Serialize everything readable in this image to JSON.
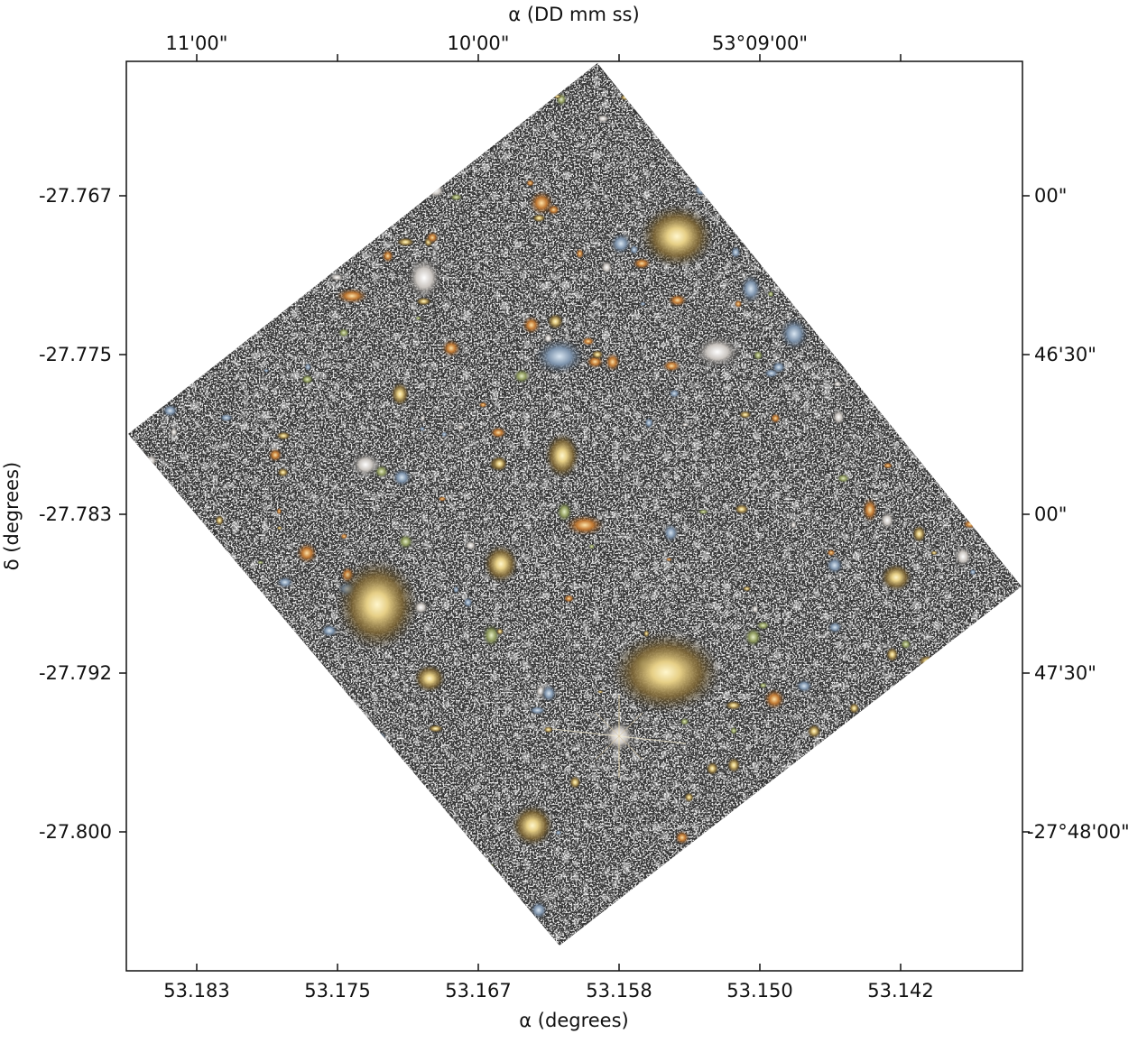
{
  "figure": {
    "top_axis_title": "α (DD mm ss)",
    "bottom_axis_title": "α (degrees)",
    "left_axis_title": "δ (degrees)",
    "bottom_ticks": [
      "53.183",
      "53.175",
      "53.167",
      "53.158",
      "53.150",
      "53.142"
    ],
    "top_ticks": [
      "11'00\"",
      "10'00\"",
      "53°09'00\""
    ],
    "left_ticks": [
      "-27.767",
      "-27.775",
      "-27.783",
      "-27.792",
      "-27.800"
    ],
    "right_ticks": [
      "00\"",
      "46'30\"",
      "00\"",
      "47'30\"",
      "-27°48'00\""
    ],
    "colors": {
      "sky_background": "#3a3a3a",
      "noise": "#e8e8e8",
      "galaxy_core": "#f3e3a2",
      "galaxy_halo": "#8a7040",
      "axis": "#111111"
    }
  }
}
